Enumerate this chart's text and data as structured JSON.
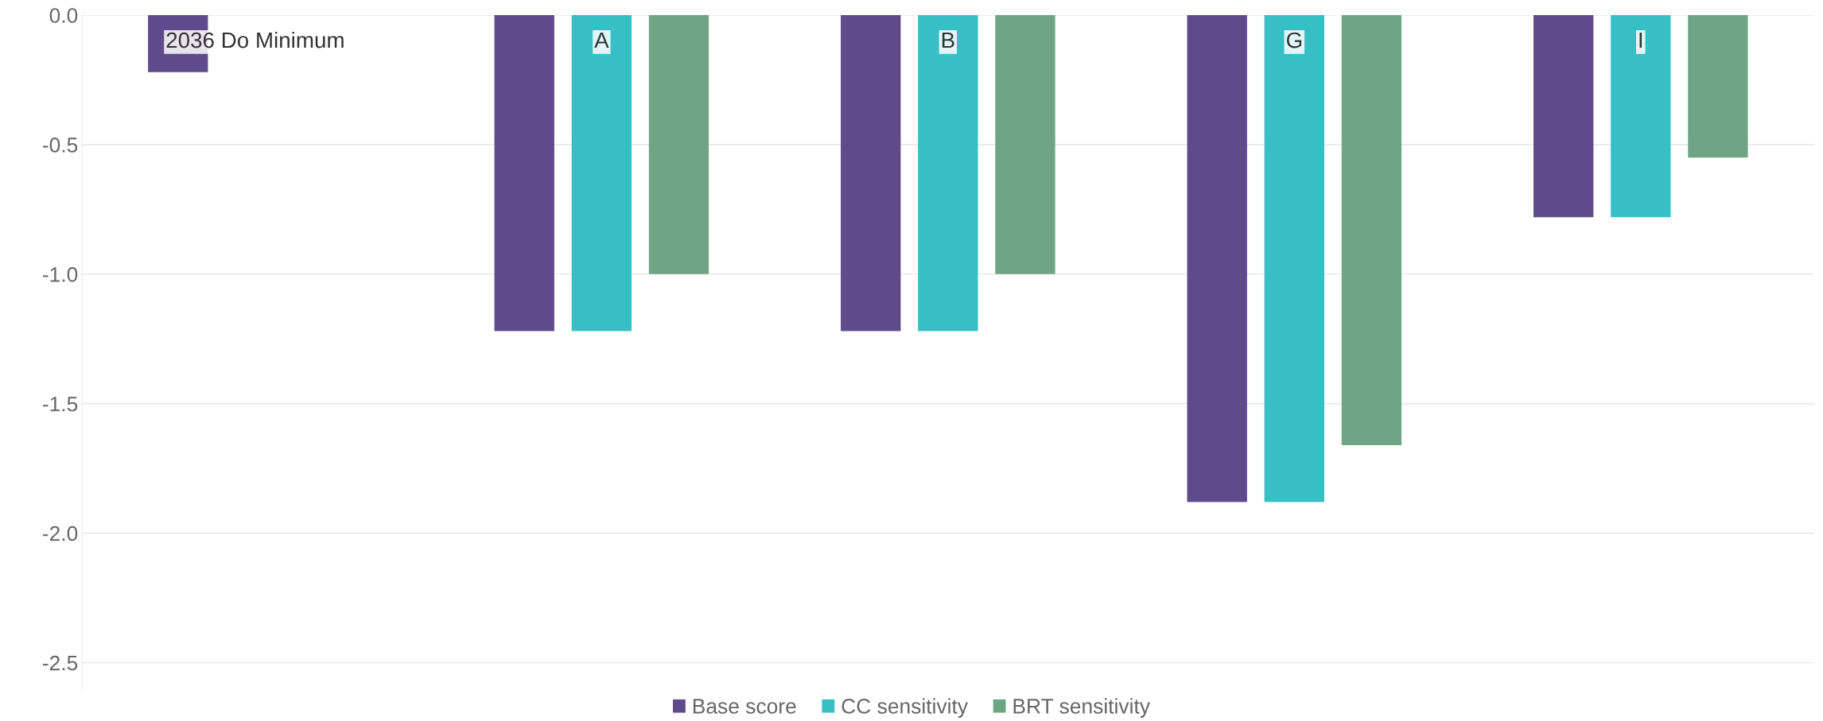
{
  "chart_data": {
    "type": "bar",
    "categories": [
      "2036 Do Minimum",
      "A",
      "B",
      "G",
      "I"
    ],
    "series": [
      {
        "name": "Base score",
        "color": "#5f4b8b",
        "values": [
          -0.22,
          -1.22,
          -1.22,
          -1.88,
          -0.78
        ]
      },
      {
        "name": "CC sensitivity",
        "color": "#36bfc4",
        "values": [
          null,
          -1.22,
          -1.22,
          -1.88,
          -0.78
        ]
      },
      {
        "name": "BRT sensitivity",
        "color": "#6ea584",
        "values": [
          null,
          -1.0,
          -1.0,
          -1.66,
          -0.55
        ]
      }
    ],
    "ylim": [
      -2.6,
      0
    ],
    "yticks": [
      {
        "value": 0,
        "label": "0.0"
      },
      {
        "value": -0.5,
        "label": "-0.5"
      },
      {
        "value": -1,
        "label": "-1.0"
      },
      {
        "value": -1.5,
        "label": "-1.5"
      },
      {
        "value": -2,
        "label": "-2.0"
      },
      {
        "value": -2.5,
        "label": "-2.5"
      }
    ],
    "grid": "y",
    "legend": "bottom"
  }
}
